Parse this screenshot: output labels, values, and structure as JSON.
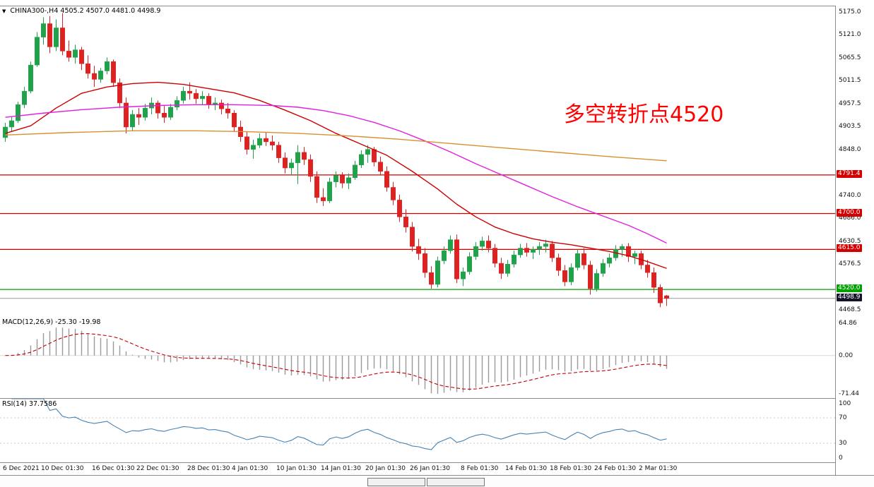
{
  "header": {
    "symbol": "CHINA300-,H4",
    "ohlc": "4505.2 4507.0 4481.0 4498.9"
  },
  "icons": {
    "collapse_icon": "▼"
  },
  "annotation": {
    "text": "多空转折点4520",
    "color": "#ff0000"
  },
  "chart_data": [
    {
      "type": "candlestick",
      "title": "CHINA300-,H4",
      "timeframe": "H4",
      "up_color": "#1fa24a",
      "down_color": "#dd2222",
      "ylim": [
        4455,
        5191
      ],
      "y_ticks": [
        5175.0,
        5121.0,
        5065.5,
        5011.5,
        4957.5,
        4903.5,
        4848.0,
        4740.0,
        4686.0,
        4630.5,
        4576.5,
        4468.5
      ],
      "levels": [
        {
          "value": 4791.4,
          "label": "4791.4",
          "color": "#d40000"
        },
        {
          "value": 4700.0,
          "label": "4700.0",
          "color": "#d40000"
        },
        {
          "value": 4615.0,
          "label": "4615.0",
          "color": "#d40000"
        },
        {
          "value": 4520.0,
          "label": "4520.0",
          "color": "#00a000"
        }
      ],
      "current_price": {
        "value": 4498.9,
        "label": "4498.9",
        "badge_color": "#14142a",
        "line_color": "#999999"
      },
      "x_ticks": [
        {
          "i": 0,
          "label": "6 Dec 2021"
        },
        {
          "i": 6,
          "label": "10 Dec 01:30"
        },
        {
          "i": 14,
          "label": "16 Dec 01:30"
        },
        {
          "i": 21,
          "label": "22 Dec 01:30"
        },
        {
          "i": 29,
          "label": "28 Dec 01:30"
        },
        {
          "i": 36,
          "label": "4 Jan 01:30"
        },
        {
          "i": 43,
          "label": "10 Jan 01:30"
        },
        {
          "i": 50,
          "label": "14 Jan 01:30"
        },
        {
          "i": 57,
          "label": "20 Jan 01:30"
        },
        {
          "i": 64,
          "label": "26 Jan 01:30"
        },
        {
          "i": 72,
          "label": "8 Feb 01:30"
        },
        {
          "i": 79,
          "label": "14 Feb 01:30"
        },
        {
          "i": 86,
          "label": "18 Feb 01:30"
        },
        {
          "i": 93,
          "label": "24 Feb 01:30"
        },
        {
          "i": 100,
          "label": "2 Mar 01:30"
        }
      ],
      "candles": [
        [
          4880,
          4915,
          4870,
          4905
        ],
        [
          4905,
          4930,
          4895,
          4920
        ],
        [
          4920,
          4965,
          4915,
          4958
        ],
        [
          4958,
          5000,
          4950,
          4990
        ],
        [
          4990,
          5060,
          4985,
          5052
        ],
        [
          5052,
          5130,
          5048,
          5118
        ],
        [
          5118,
          5165,
          5100,
          5150
        ],
        [
          5150,
          5168,
          5080,
          5095
        ],
        [
          5095,
          5160,
          5085,
          5140
        ],
        [
          5140,
          5175,
          5075,
          5085
        ],
        [
          5085,
          5110,
          5060,
          5070
        ],
        [
          5070,
          5100,
          5055,
          5088
        ],
        [
          5088,
          5095,
          5040,
          5055
        ],
        [
          5055,
          5075,
          5020,
          5032
        ],
        [
          5032,
          5050,
          5000,
          5018
        ],
        [
          5018,
          5045,
          5010,
          5038
        ],
        [
          5038,
          5070,
          5030,
          5060
        ],
        [
          5060,
          5065,
          5000,
          5010
        ],
        [
          5010,
          5020,
          4950,
          4962
        ],
        [
          4962,
          4975,
          4890,
          4905
        ],
        [
          4905,
          4945,
          4895,
          4935
        ],
        [
          4935,
          4950,
          4910,
          4928
        ],
        [
          4928,
          4960,
          4920,
          4950
        ],
        [
          4950,
          4975,
          4935,
          4962
        ],
        [
          4962,
          4968,
          4925,
          4938
        ],
        [
          4938,
          4955,
          4915,
          4928
        ],
        [
          4928,
          4960,
          4922,
          4952
        ],
        [
          4952,
          4978,
          4945,
          4968
        ],
        [
          4968,
          5000,
          4960,
          4990
        ],
        [
          4990,
          5011,
          4970,
          4985
        ],
        [
          4985,
          4995,
          4960,
          4972
        ],
        [
          4972,
          4990,
          4958,
          4978
        ],
        [
          4978,
          4985,
          4948,
          4958
        ],
        [
          4958,
          4975,
          4945,
          4962
        ],
        [
          4962,
          4970,
          4935,
          4948
        ],
        [
          4948,
          4962,
          4925,
          4938
        ],
        [
          4938,
          4945,
          4895,
          4905
        ],
        [
          4905,
          4920,
          4870,
          4882
        ],
        [
          4882,
          4895,
          4840,
          4852
        ],
        [
          4852,
          4875,
          4830,
          4862
        ],
        [
          4862,
          4890,
          4855,
          4878
        ],
        [
          4878,
          4892,
          4860,
          4870
        ],
        [
          4870,
          4885,
          4850,
          4862
        ],
        [
          4862,
          4870,
          4820,
          4832
        ],
        [
          4832,
          4845,
          4795,
          4808
        ],
        [
          4808,
          4830,
          4790,
          4820
        ],
        [
          4820,
          4862,
          4770,
          4845
        ],
        [
          4845,
          4858,
          4815,
          4828
        ],
        [
          4828,
          4840,
          4775,
          4788
        ],
        [
          4788,
          4800,
          4725,
          4738
        ],
        [
          4738,
          4760,
          4718,
          4730
        ],
        [
          4730,
          4785,
          4725,
          4775
        ],
        [
          4775,
          4800,
          4762,
          4790
        ],
        [
          4790,
          4798,
          4760,
          4772
        ],
        [
          4772,
          4795,
          4758,
          4785
        ],
        [
          4785,
          4825,
          4780,
          4815
        ],
        [
          4815,
          4850,
          4808,
          4840
        ],
        [
          4840,
          4862,
          4820,
          4852
        ],
        [
          4852,
          4858,
          4812,
          4822
        ],
        [
          4822,
          4835,
          4790,
          4800
        ],
        [
          4800,
          4812,
          4752,
          4762
        ],
        [
          4762,
          4775,
          4720,
          4732
        ],
        [
          4732,
          4745,
          4680,
          4692
        ],
        [
          4692,
          4710,
          4655,
          4668
        ],
        [
          4668,
          4680,
          4610,
          4622
        ],
        [
          4622,
          4640,
          4590,
          4605
        ],
        [
          4605,
          4618,
          4548,
          4560
        ],
        [
          4560,
          4575,
          4522,
          4532
        ],
        [
          4532,
          4598,
          4525,
          4588
        ],
        [
          4588,
          4622,
          4580,
          4612
        ],
        [
          4612,
          4648,
          4605,
          4638
        ],
        [
          4638,
          4650,
          4535,
          4545
        ],
        [
          4545,
          4572,
          4528,
          4562
        ],
        [
          4562,
          4608,
          4555,
          4598
        ],
        [
          4598,
          4632,
          4590,
          4622
        ],
        [
          4622,
          4645,
          4612,
          4635
        ],
        [
          4635,
          4648,
          4608,
          4618
        ],
        [
          4618,
          4628,
          4572,
          4582
        ],
        [
          4582,
          4595,
          4545,
          4558
        ],
        [
          4558,
          4590,
          4550,
          4580
        ],
        [
          4580,
          4612,
          4572,
          4602
        ],
        [
          4602,
          4628,
          4595,
          4618
        ],
        [
          4618,
          4630,
          4598,
          4608
        ],
        [
          4608,
          4622,
          4592,
          4615
        ],
        [
          4615,
          4632,
          4602,
          4622
        ],
        [
          4622,
          4638,
          4608,
          4628
        ],
        [
          4628,
          4635,
          4585,
          4595
        ],
        [
          4595,
          4605,
          4552,
          4565
        ],
        [
          4565,
          4578,
          4528,
          4538
        ],
        [
          4538,
          4582,
          4530,
          4572
        ],
        [
          4572,
          4615,
          4565,
          4605
        ],
        [
          4605,
          4618,
          4568,
          4578
        ],
        [
          4578,
          4588,
          4508,
          4522
        ],
        [
          4522,
          4568,
          4515,
          4558
        ],
        [
          4558,
          4592,
          4550,
          4582
        ],
        [
          4582,
          4605,
          4572,
          4595
        ],
        [
          4595,
          4625,
          4588,
          4615
        ],
        [
          4615,
          4628,
          4598,
          4622
        ],
        [
          4622,
          4630,
          4585,
          4598
        ],
        [
          4598,
          4612,
          4580,
          4605
        ],
        [
          4605,
          4612,
          4568,
          4578
        ],
        [
          4578,
          4590,
          4548,
          4560
        ],
        [
          4560,
          4572,
          4512,
          4525
        ],
        [
          4525,
          4532,
          4478,
          4488
        ],
        [
          4505.2,
          4507.0,
          4481.0,
          4498.9
        ]
      ],
      "overlays": [
        {
          "name": "ma-fast",
          "color": "#cc0000",
          "points": [
            [
              0,
              4890
            ],
            [
              4,
              4908
            ],
            [
              8,
              4950
            ],
            [
              12,
              4985
            ],
            [
              16,
              5000
            ],
            [
              20,
              5008
            ],
            [
              24,
              5011
            ],
            [
              28,
              5006
            ],
            [
              32,
              4996
            ],
            [
              36,
              4986
            ],
            [
              40,
              4968
            ],
            [
              44,
              4945
            ],
            [
              48,
              4920
            ],
            [
              52,
              4890
            ],
            [
              56,
              4864
            ],
            [
              60,
              4838
            ],
            [
              64,
              4800
            ],
            [
              68,
              4758
            ],
            [
              71,
              4722
            ],
            [
              74,
              4692
            ],
            [
              77,
              4668
            ],
            [
              80,
              4652
            ],
            [
              83,
              4640
            ],
            [
              86,
              4632
            ],
            [
              89,
              4626
            ],
            [
              92,
              4618
            ],
            [
              95,
              4610
            ],
            [
              98,
              4600
            ],
            [
              101,
              4586
            ],
            [
              104,
              4570
            ]
          ]
        },
        {
          "name": "ma-medium",
          "color": "#e020e0",
          "points": [
            [
              0,
              4928
            ],
            [
              6,
              4938
            ],
            [
              12,
              4946
            ],
            [
              18,
              4952
            ],
            [
              24,
              4956
            ],
            [
              30,
              4958
            ],
            [
              36,
              4958
            ],
            [
              42,
              4956
            ],
            [
              46,
              4952
            ],
            [
              50,
              4944
            ],
            [
              54,
              4932
            ],
            [
              58,
              4916
            ],
            [
              62,
              4896
            ],
            [
              66,
              4872
            ],
            [
              70,
              4846
            ],
            [
              74,
              4818
            ],
            [
              78,
              4792
            ],
            [
              82,
              4766
            ],
            [
              86,
              4740
            ],
            [
              90,
              4716
            ],
            [
              94,
              4694
            ],
            [
              98,
              4672
            ],
            [
              101,
              4652
            ],
            [
              104,
              4630
            ]
          ]
        },
        {
          "name": "ma-slow",
          "color": "#d89030",
          "points": [
            [
              0,
              4886
            ],
            [
              10,
              4892
            ],
            [
              20,
              4896
            ],
            [
              30,
              4896
            ],
            [
              38,
              4894
            ],
            [
              46,
              4890
            ],
            [
              54,
              4884
            ],
            [
              62,
              4876
            ],
            [
              70,
              4866
            ],
            [
              78,
              4856
            ],
            [
              86,
              4846
            ],
            [
              94,
              4836
            ],
            [
              104,
              4825
            ]
          ]
        }
      ]
    },
    {
      "type": "macd",
      "label": "MACD(12,26,9) -25.30 -19.98",
      "fast": 12,
      "slow": 26,
      "signal": 9,
      "current_macd": -25.3,
      "current_signal": -19.98,
      "ylim": [
        -71.44,
        64.86
      ],
      "y_ticks": [
        {
          "v": 64.86,
          "label": "64.86"
        },
        {
          "v": 0,
          "label": "0.00"
        },
        {
          "v": -71.44,
          "label": "-71.44"
        }
      ],
      "histogram_color": "#9a9a9a",
      "signal_color": "#c00000",
      "zero_line_color": "#d8d8d8"
    },
    {
      "type": "rsi",
      "label": "RSI(14) 37.7586",
      "period": 14,
      "current": 37.7586,
      "ylim": [
        0,
        100
      ],
      "levels": [
        70,
        30
      ],
      "y_ticks": [
        {
          "v": 100,
          "label": "100"
        },
        {
          "v": 70,
          "label": "70"
        },
        {
          "v": 30,
          "label": "30"
        },
        {
          "v": 0,
          "label": "0"
        }
      ],
      "line_color": "#4682b4",
      "level_color": "#c8c8c8"
    }
  ]
}
